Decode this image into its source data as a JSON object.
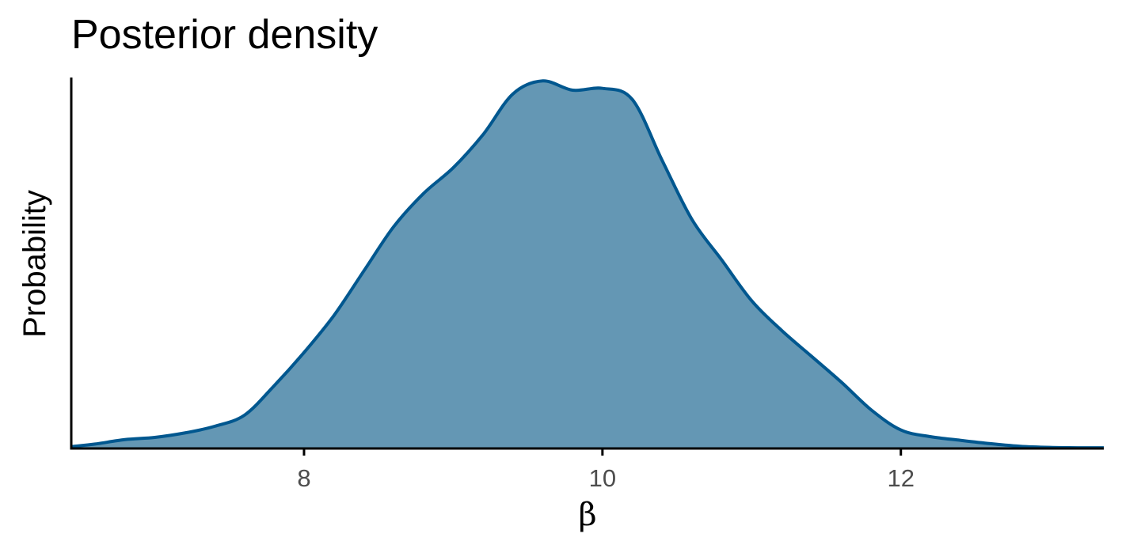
{
  "chart_data": {
    "type": "area",
    "title": "Posterior density",
    "xlabel": "β",
    "ylabel": "Probability",
    "xlim": [
      6.44,
      13.36
    ],
    "ylim": [
      0,
      1.0
    ],
    "x_ticks": [
      8,
      10,
      12
    ],
    "x_tick_labels": [
      "8",
      "10",
      "12"
    ],
    "y_ticks_shown": false,
    "grid": false,
    "legend": "none",
    "fill_color": "#6497b4",
    "line_color": "#00578f",
    "series": [
      {
        "x": [
          6.44,
          6.6,
          6.8,
          7.0,
          7.2,
          7.4,
          7.6,
          7.8,
          8.0,
          8.2,
          8.4,
          8.6,
          8.8,
          9.0,
          9.2,
          9.4,
          9.6,
          9.8,
          10.0,
          10.2,
          10.4,
          10.6,
          10.8,
          11.0,
          11.2,
          11.4,
          11.6,
          11.8,
          12.0,
          12.2,
          12.4,
          12.6,
          12.8,
          13.0,
          13.2,
          13.36
        ],
        "y": [
          0.005,
          0.012,
          0.024,
          0.03,
          0.042,
          0.06,
          0.09,
          0.17,
          0.26,
          0.36,
          0.48,
          0.6,
          0.69,
          0.76,
          0.85,
          0.96,
          0.995,
          0.97,
          0.975,
          0.945,
          0.78,
          0.62,
          0.51,
          0.4,
          0.32,
          0.25,
          0.18,
          0.105,
          0.05,
          0.032,
          0.022,
          0.013,
          0.006,
          0.003,
          0.002,
          0.002
        ]
      }
    ]
  }
}
